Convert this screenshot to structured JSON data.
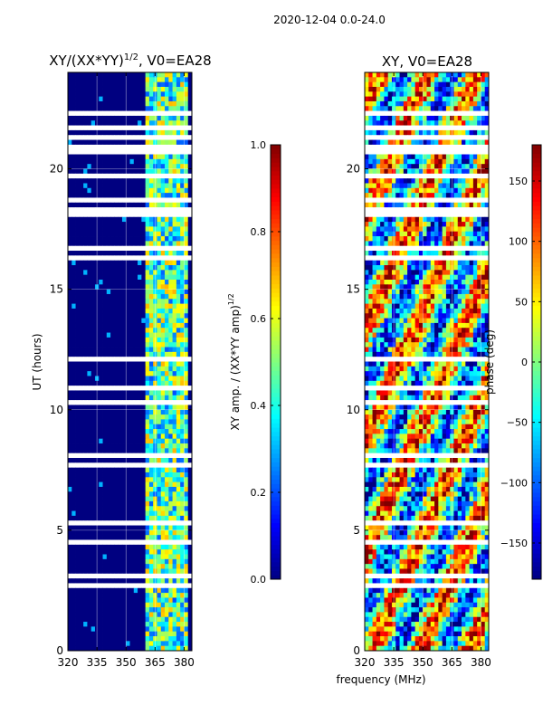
{
  "suptitle": "2020-12-04 0.0-24.0",
  "chart_data": [
    {
      "type": "heatmap",
      "title": "XY/(XX*YY)^1/2, V0=EA28",
      "title_main": "XY/(XX*YY)",
      "title_sup": "1/2",
      "title_tail": ", V0=EA28",
      "xlabel": "",
      "ylabel": "UT (hours)",
      "xlim": [
        320,
        384
      ],
      "ylim": [
        0,
        24
      ],
      "xticks": [
        320,
        335,
        350,
        365,
        380
      ],
      "yticks": [
        0,
        5,
        10,
        15,
        20
      ],
      "grid": true,
      "colorbar": {
        "label": "XY amp. / (XX*YY amp)^1/2",
        "label_main": "XY amp. / (XX*YY amp)",
        "label_sup": "1/2",
        "range": [
          0.0,
          1.0
        ],
        "ticks": [
          "0.0",
          "0.2",
          "0.4",
          "0.6",
          "0.8",
          "1.0"
        ],
        "tick_values": [
          0.0,
          0.2,
          0.4,
          0.6,
          0.8,
          1.0
        ],
        "colormap": "jet"
      }
    },
    {
      "type": "heatmap",
      "title": "XY, V0=EA28",
      "xlabel": "frequency (MHz)",
      "ylabel": "",
      "xlim": [
        320,
        384
      ],
      "ylim": [
        0,
        24
      ],
      "xticks": [
        320,
        335,
        350,
        365,
        380
      ],
      "yticks": [
        0,
        5,
        10,
        15,
        20
      ],
      "grid": true,
      "colorbar": {
        "label": "phase (deg)",
        "range": [
          -180,
          180
        ],
        "ticks": [
          "−150",
          "−100",
          "−50",
          "0",
          "50",
          "100",
          "150"
        ],
        "tick_values": [
          -150,
          -100,
          -50,
          0,
          50,
          100,
          150
        ],
        "colormap": "jet"
      }
    }
  ]
}
